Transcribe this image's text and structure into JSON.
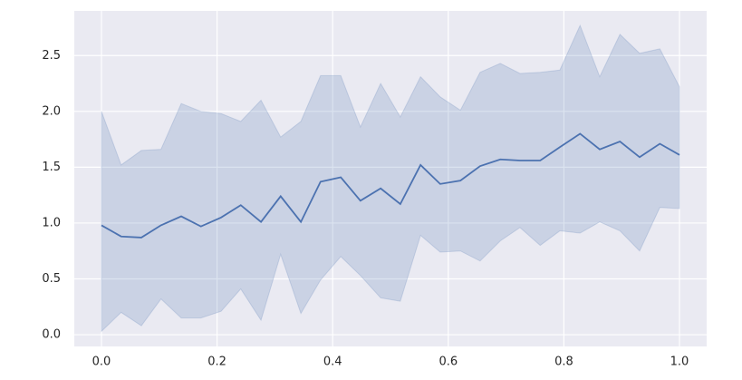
{
  "chart_data": {
    "type": "line",
    "x": [
      0,
      0.034,
      0.069,
      0.103,
      0.138,
      0.172,
      0.207,
      0.241,
      0.276,
      0.31,
      0.345,
      0.379,
      0.414,
      0.448,
      0.483,
      0.517,
      0.552,
      0.586,
      0.621,
      0.655,
      0.69,
      0.724,
      0.759,
      0.793,
      0.828,
      0.862,
      0.897,
      0.931,
      0.966,
      1
    ],
    "values": [
      0.98,
      0.88,
      0.87,
      0.98,
      1.06,
      0.97,
      1.05,
      1.16,
      1.01,
      1.24,
      1.01,
      1.37,
      1.41,
      1.2,
      1.31,
      1.17,
      1.52,
      1.35,
      1.38,
      1.51,
      1.57,
      1.56,
      1.56,
      1.68,
      1.8,
      1.66,
      1.73,
      1.59,
      1.71,
      1.61
    ],
    "upper": [
      2.0,
      1.52,
      1.65,
      1.66,
      2.07,
      2.0,
      1.98,
      1.91,
      2.1,
      1.77,
      1.91,
      2.32,
      2.32,
      1.86,
      2.25,
      1.95,
      2.31,
      2.13,
      2.01,
      2.35,
      2.43,
      2.34,
      2.35,
      2.37,
      2.77,
      2.31,
      2.69,
      2.52,
      2.56,
      2.22
    ],
    "lower": [
      0.03,
      0.2,
      0.08,
      0.32,
      0.15,
      0.15,
      0.21,
      0.41,
      0.13,
      0.72,
      0.19,
      0.49,
      0.7,
      0.53,
      0.33,
      0.3,
      0.89,
      0.74,
      0.75,
      0.66,
      0.84,
      0.96,
      0.8,
      0.93,
      0.91,
      1.01,
      0.93,
      0.75,
      1.14,
      1.13
    ],
    "color": "#4c72b0",
    "xlim": [
      -0.047,
      1.047
    ],
    "ylim": [
      -0.105,
      2.9
    ],
    "xticks": [
      {
        "value": 0,
        "label": "0.0"
      },
      0.2,
      0.4,
      0.6,
      0.8,
      {
        "value": 1,
        "label": "1.0"
      }
    ],
    "yticks": [
      {
        "value": 0,
        "label": "0.0"
      },
      0.5,
      {
        "value": 1,
        "label": "1.0"
      },
      1.5,
      {
        "value": 2,
        "label": "2.0"
      },
      2.5
    ],
    "grid": true
  }
}
